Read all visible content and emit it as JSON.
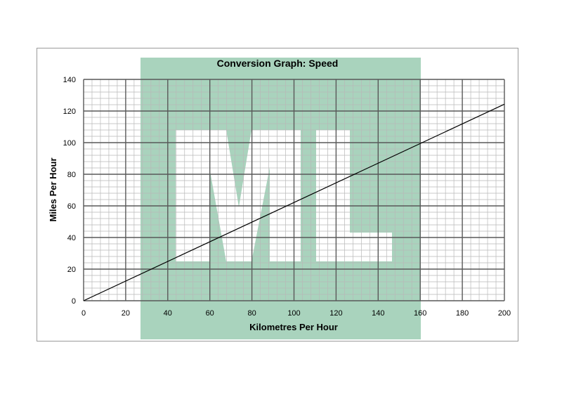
{
  "chart_data": {
    "type": "line",
    "title": "Conversion Graph: Speed",
    "xlabel": "Kilometres Per Hour",
    "ylabel": "Miles Per Hour",
    "xlim": [
      0,
      200
    ],
    "ylim": [
      0,
      140
    ],
    "x_ticks": [
      0,
      20,
      40,
      60,
      80,
      100,
      120,
      140,
      160,
      180,
      200
    ],
    "y_ticks": [
      0,
      20,
      40,
      60,
      80,
      100,
      120,
      140
    ],
    "grid": true,
    "series": [
      {
        "x": [
          0,
          200
        ],
        "y": [
          0,
          124.3
        ]
      }
    ],
    "watermark": {
      "text": "ML",
      "color": "#a9d3bd"
    },
    "colors": {
      "line": "#000000",
      "major_grid": "#595959",
      "minor_grid": "#b8b8b8"
    }
  }
}
